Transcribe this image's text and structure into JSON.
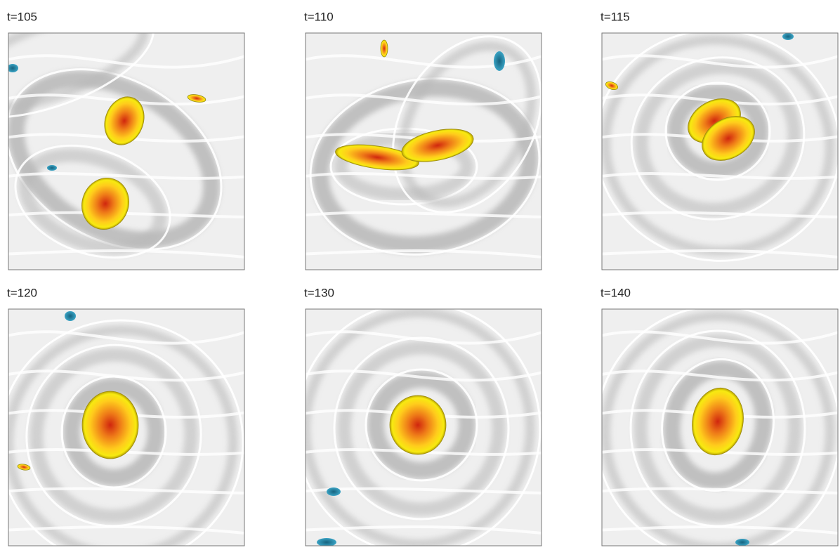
{
  "panels": [
    {
      "label": "t=105"
    },
    {
      "label": "t=110"
    },
    {
      "label": "t=115"
    },
    {
      "label": "t=120"
    },
    {
      "label": "t=130"
    },
    {
      "label": "t=140"
    }
  ]
}
